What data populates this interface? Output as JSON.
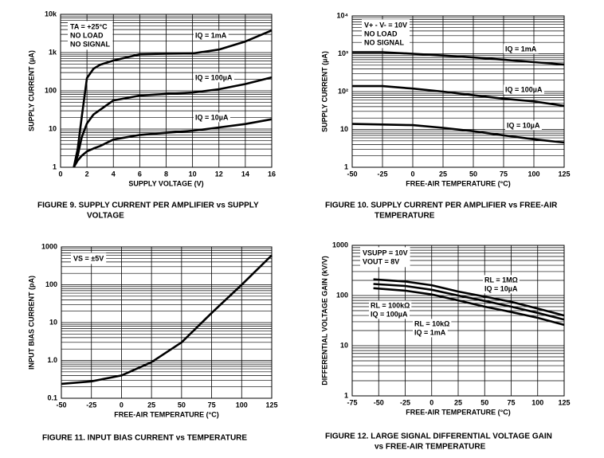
{
  "chart_data": [
    {
      "type": "line",
      "caption": [
        "FIGURE 9.  SUPPLY CURRENT PER AMPLIFIER vs SUPPLY",
        "VOLTAGE"
      ],
      "xlabel": "SUPPLY VOLTAGE (V)",
      "ylabel": "SUPPLY CURRENT (µA)",
      "annotations": [
        "TA = +25°C",
        "NO LOAD",
        "NO SIGNAL"
      ],
      "log_y": true,
      "grid": true,
      "minor_grid": true,
      "xlim": [
        0,
        16
      ],
      "xticks": [
        0,
        2,
        4,
        6,
        8,
        10,
        12,
        14,
        16
      ],
      "ylim": [
        1,
        10000
      ],
      "yticks": [
        1,
        10,
        100,
        {
          "value": 1000,
          "label": "1k"
        },
        {
          "value": 10000,
          "label": "10k"
        }
      ],
      "x": [
        1,
        1.3,
        1.6,
        2,
        2.5,
        3,
        4,
        6,
        8,
        10,
        12,
        14,
        16
      ],
      "series": [
        {
          "name": "IQ = 1mA",
          "color": "#000000",
          "values": [
            1,
            3,
            20,
            215,
            380,
            480,
            620,
            900,
            930,
            950,
            1200,
            1950,
            3800
          ]
        },
        {
          "name": "IQ = 100µA",
          "color": "#000000",
          "values": [
            1,
            2,
            6,
            14,
            24,
            32,
            56,
            75,
            83,
            90,
            110,
            150,
            225
          ]
        },
        {
          "name": "IQ = 10µA",
          "color": "#000000",
          "values": [
            1,
            1.5,
            2,
            2.6,
            3.1,
            3.6,
            5.3,
            7,
            8,
            9,
            11,
            13.5,
            18
          ]
        }
      ]
    },
    {
      "type": "line",
      "caption": [
        "FIGURE 10.  SUPPLY CURRENT PER AMPLIFIER vs FREE-AIR",
        "TEMPERATURE"
      ],
      "xlabel": "FREE-AIR TEMPERATURE (°C)",
      "ylabel": "SUPPLY CURRENT (µA)",
      "annotations": [
        "V+ - V- = 10V",
        "NO LOAD",
        "NO SIGNAL"
      ],
      "log_y": true,
      "grid": true,
      "minor_grid": true,
      "xlim": [
        -50,
        125
      ],
      "xticks": [
        -50,
        -25,
        0,
        25,
        50,
        75,
        100,
        125
      ],
      "ylim": [
        1,
        10000
      ],
      "yticks": [
        1,
        10,
        {
          "value": 100,
          "label": "10²"
        },
        {
          "value": 1000,
          "label": "10³"
        },
        {
          "value": 10000,
          "label": "10⁴"
        }
      ],
      "x": [
        -50,
        -25,
        0,
        25,
        50,
        75,
        100,
        125
      ],
      "series": [
        {
          "name": "IQ = 1mA",
          "color": "#000000",
          "values": [
            1100,
            1100,
            1000,
            900,
            800,
            700,
            600,
            520
          ]
        },
        {
          "name": "IQ = 100µA",
          "color": "#000000",
          "values": [
            140,
            140,
            120,
            100,
            80,
            65,
            55,
            42
          ]
        },
        {
          "name": "IQ = 10µA",
          "color": "#000000",
          "values": [
            14,
            13.5,
            13,
            11,
            9,
            7,
            5.5,
            4.5
          ]
        }
      ]
    },
    {
      "type": "line",
      "caption": [
        "FIGURE 11.  INPUT BIAS CURRENT vs TEMPERATURE"
      ],
      "xlabel": "FREE-AIR TEMPERATURE (°C)",
      "ylabel": "INPUT BIAS CURRENT (pA)",
      "annotations": [
        "VS = ±5V"
      ],
      "log_y": true,
      "grid": true,
      "minor_grid": true,
      "xlim": [
        -50,
        125
      ],
      "xticks": [
        -50,
        -25,
        0,
        25,
        50,
        75,
        100,
        125
      ],
      "ylim": [
        0.1,
        1000
      ],
      "yticks": [
        0.1,
        {
          "value": 1,
          "label": "1.0"
        },
        10,
        100,
        1000
      ],
      "x": [
        -50,
        -25,
        0,
        25,
        50,
        75,
        100,
        125
      ],
      "series": [
        {
          "color": "#000000",
          "values": [
            0.24,
            0.28,
            0.4,
            0.9,
            3,
            18,
            100,
            600
          ]
        }
      ]
    },
    {
      "type": "line",
      "caption": [
        "FIGURE 12.  LARGE SIGNAL DIFFERENTIAL VOLTAGE GAIN",
        "vs FREE-AIR TEMPERATURE"
      ],
      "xlabel": "FREE-AIR TEMPERATURE (°C)",
      "ylabel": "DIFFERENTIAL VOLTAGE GAIN (kV/V)",
      "annotations": [
        "VSUPP = 10V",
        "VOUT = 8V"
      ],
      "log_y": true,
      "grid": true,
      "minor_grid": true,
      "xlim": [
        -75,
        125
      ],
      "xticks": [
        -75,
        -50,
        -25,
        0,
        25,
        50,
        75,
        100,
        125
      ],
      "ylim": [
        1,
        1000
      ],
      "yticks": [
        1,
        10,
        100,
        1000
      ],
      "x": [
        -55,
        -25,
        0,
        25,
        50,
        75,
        100,
        125
      ],
      "series": [
        {
          "label_lines": [
            "RL = 1MΩ",
            "IQ = 10µA"
          ],
          "color": "#000000",
          "values": [
            210,
            190,
            160,
            120,
            95,
            75,
            55,
            40
          ]
        },
        {
          "label_lines": [
            "RL = 100kΩ",
            "IQ = 100µA"
          ],
          "color": "#000000",
          "values": [
            170,
            155,
            130,
            100,
            78,
            60,
            45,
            33
          ]
        },
        {
          "label_lines": [
            "RL = 10kΩ",
            "IQ = 1mA"
          ],
          "color": "#000000",
          "values": [
            140,
            125,
            105,
            80,
            60,
            47,
            36,
            26
          ]
        }
      ]
    }
  ]
}
